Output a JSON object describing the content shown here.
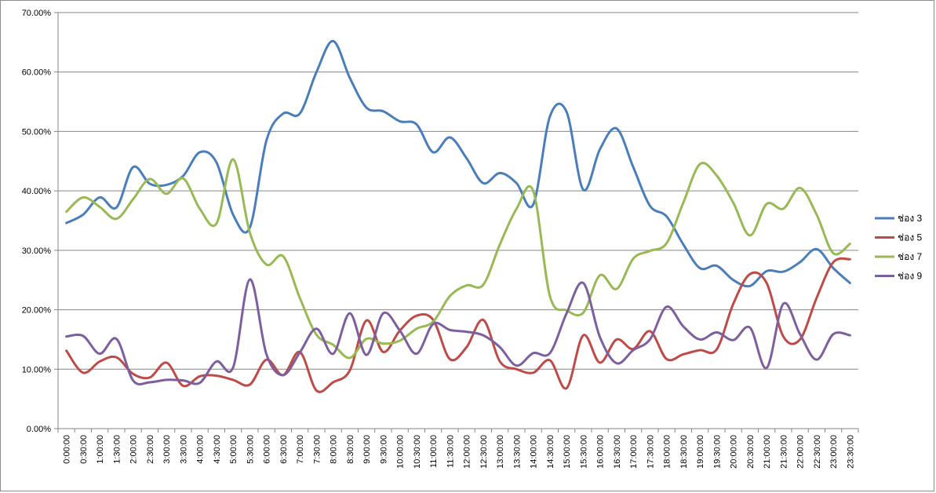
{
  "chart_data": {
    "type": "line",
    "title": "",
    "xlabel": "",
    "ylabel": "",
    "ylim": [
      0,
      70
    ],
    "y_ticks": [
      "0.00%",
      "10.00%",
      "20.00%",
      "30.00%",
      "40.00%",
      "50.00%",
      "60.00%",
      "70.00%"
    ],
    "grid": "horizontal",
    "legend_position": "right",
    "categories": [
      "0:00:00",
      "0:30:00",
      "1:00:00",
      "1:30:00",
      "2:00:00",
      "2:30:00",
      "3:00:00",
      "3:30:00",
      "4:00:00",
      "4:30:00",
      "5:00:00",
      "5:30:00",
      "6:00:00",
      "6:30:00",
      "7:00:00",
      "7:30:00",
      "8:00:00",
      "8:30:00",
      "9:00:00",
      "9:30:00",
      "10:00:00",
      "10:30:00",
      "11:00:00",
      "11:30:00",
      "12:00:00",
      "12:30:00",
      "13:00:00",
      "13:30:00",
      "14:00:00",
      "14:30:00",
      "15:00:00",
      "15:30:00",
      "16:00:00",
      "16:30:00",
      "17:00:00",
      "17:30:00",
      "18:00:00",
      "18:30:00",
      "19:00:00",
      "19:30:00",
      "20:00:00",
      "20:30:00",
      "21:00:00",
      "21:30:00",
      "22:00:00",
      "22:30:00",
      "23:00:00",
      "23:30:00"
    ],
    "series": [
      {
        "name": "ช่อง 3",
        "color": "#4a7ebb",
        "values": [
          34.6,
          36.0,
          38.9,
          37.2,
          44.0,
          41.2,
          41.0,
          42.5,
          46.5,
          44.8,
          36.0,
          33.8,
          48.5,
          53.0,
          53.0,
          60.0,
          65.2,
          59.0,
          54.0,
          53.4,
          51.7,
          51.2,
          46.5,
          49.0,
          45.5,
          41.3,
          43.0,
          41.3,
          37.7,
          52.5,
          53.3,
          40.2,
          47.0,
          50.5,
          44.0,
          37.5,
          35.7,
          31.0,
          27.0,
          27.4,
          25.0,
          24.0,
          26.5,
          26.4,
          28.0,
          30.2,
          27.0,
          24.5
        ]
      },
      {
        "name": "ช่อง 5",
        "color": "#be4b48",
        "values": [
          13.1,
          9.4,
          11.3,
          12.0,
          9.2,
          8.6,
          11.1,
          7.2,
          8.8,
          8.9,
          8.2,
          7.4,
          11.6,
          9.0,
          12.9,
          6.4,
          7.8,
          9.8,
          18.2,
          12.9,
          16.5,
          19.0,
          18.3,
          11.7,
          13.7,
          18.3,
          11.3,
          10.0,
          9.4,
          11.5,
          6.8,
          15.7,
          11.1,
          15.0,
          13.4,
          16.4,
          11.7,
          12.5,
          13.2,
          13.3,
          21.0,
          26.0,
          24.5,
          15.5,
          15.0,
          22.0,
          28.0,
          28.5
        ]
      },
      {
        "name": "ช่อง 7",
        "color": "#98b954",
        "values": [
          36.5,
          38.9,
          37.3,
          35.3,
          38.6,
          42.0,
          39.5,
          42.1,
          37.0,
          34.5,
          45.3,
          33.0,
          27.6,
          29.0,
          22.0,
          15.8,
          14.1,
          11.9,
          15.1,
          14.3,
          14.8,
          16.8,
          18.0,
          22.3,
          24.1,
          24.2,
          31.0,
          37.0,
          40.0,
          22.3,
          19.9,
          19.5,
          25.8,
          23.5,
          28.6,
          29.9,
          31.2,
          38.0,
          44.5,
          42.6,
          38.0,
          32.5,
          37.8,
          37.0,
          40.5,
          36.0,
          29.5,
          31.1
        ]
      },
      {
        "name": "ช่อง 9",
        "color": "#7d5fa0",
        "values": [
          15.5,
          15.6,
          12.6,
          15.1,
          8.1,
          7.8,
          8.2,
          8.1,
          7.7,
          11.3,
          10.3,
          25.1,
          12.5,
          9.0,
          12.8,
          16.8,
          12.6,
          19.4,
          12.4,
          19.4,
          16.5,
          12.6,
          17.6,
          16.6,
          16.3,
          15.7,
          13.7,
          10.6,
          12.7,
          12.7,
          19.4,
          24.5,
          15.4,
          11.0,
          13.2,
          15.0,
          20.5,
          17.2,
          15.0,
          16.2,
          14.9,
          17.0,
          10.2,
          21.0,
          15.9,
          11.6,
          15.9,
          15.7
        ]
      }
    ]
  }
}
